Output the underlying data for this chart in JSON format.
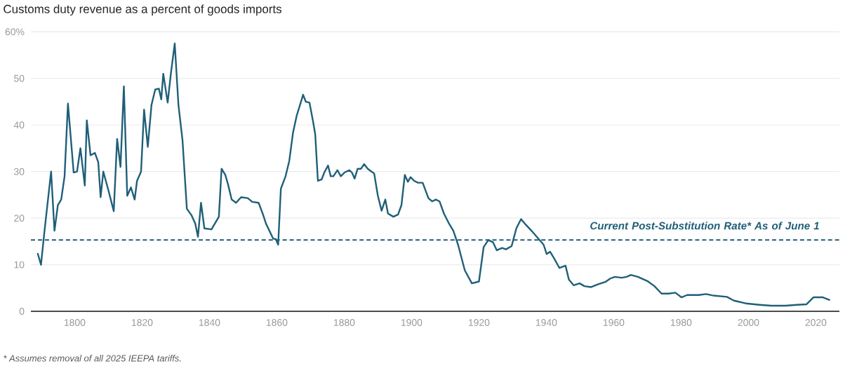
{
  "chart_data": {
    "type": "line",
    "title": "Customs duty revenue as a percent of goods imports",
    "x": [
      1789,
      1790,
      1791,
      1793,
      1794,
      1795,
      1796,
      1797,
      1798,
      1799.7,
      1800.7,
      1801.7,
      1803,
      1803.6,
      1804.7,
      1806,
      1807,
      1807.7,
      1808.5,
      1810,
      1811.6,
      1812.6,
      1813.6,
      1814.6,
      1815.6,
      1816.7,
      1817.8,
      1818.5,
      1819.7,
      1820.6,
      1821.7,
      1822.8,
      1823.9,
      1825,
      1825.7,
      1826.3,
      1827.6,
      1828.6,
      1829.7,
      1830.8,
      1832,
      1833.3,
      1834.7,
      1835.8,
      1836.6,
      1837.5,
      1838.5,
      1840.6,
      1842.8,
      1843.6,
      1844.7,
      1845.5,
      1846.6,
      1847.9,
      1849.4,
      1851.4,
      1852.7,
      1854.6,
      1855.9,
      1856.8,
      1858.9,
      1859.7,
      1860.4,
      1861.2,
      1862.6,
      1863.7,
      1864.8,
      1865.9,
      1867.1,
      1867.8,
      1868.6,
      1869.7,
      1870.8,
      1871.4,
      1872.2,
      1873.3,
      1874.1,
      1875.2,
      1876,
      1876.8,
      1878,
      1879,
      1880.1,
      1881.5,
      1882.3,
      1883.1,
      1884,
      1885,
      1885.9,
      1887,
      1888.1,
      1888.9,
      1890,
      1891.1,
      1892.2,
      1893,
      1894.6,
      1896,
      1897,
      1898,
      1898.9,
      1899.7,
      1900.8,
      1901.9,
      1903.3,
      1905,
      1906.1,
      1907.2,
      1908.3,
      1909.6,
      1911,
      1912.4,
      1913.8,
      1915.8,
      1917.9,
      1920,
      1921.4,
      1922.8,
      1924.2,
      1925.3,
      1926.9,
      1928,
      1929.7,
      1931.1,
      1932.5,
      1933.9,
      1935.6,
      1937.4,
      1939.2,
      1940.1,
      1941.1,
      1942.2,
      1943.9,
      1945.7,
      1946.7,
      1948.1,
      1949.9,
      1951.3,
      1953.3,
      1955.4,
      1957.5,
      1958.9,
      1960.3,
      1962.4,
      1963.8,
      1965.1,
      1967.2,
      1970,
      1972.1,
      1974.2,
      1976.3,
      1978.3,
      1980.1,
      1981.8,
      1985.3,
      1987.4,
      1989.4,
      1993.6,
      1995.7,
      1999.2,
      2003.3,
      2006.8,
      2011,
      2014.4,
      2017.2,
      2019.3,
      2022.1,
      2024.2
    ],
    "series": [
      {
        "color": "#1f5f78",
        "values": [
          12.5,
          10,
          17,
          30,
          17.3,
          22.8,
          24,
          29,
          44.6,
          29.8,
          30,
          35,
          27,
          41,
          33.5,
          34,
          32,
          24.5,
          30,
          26,
          21.5,
          37,
          31,
          48.3,
          24.8,
          26.6,
          24,
          28,
          30,
          43.3,
          35.3,
          44.3,
          47.6,
          47.8,
          45.5,
          51,
          44.8,
          51.3,
          57.5,
          44.3,
          36.8,
          22,
          20.6,
          18.8,
          16,
          23.3,
          17.8,
          17.6,
          20.3,
          30.6,
          29.3,
          27.3,
          24,
          23.3,
          24.5,
          24.3,
          23.5,
          23.3,
          20.8,
          18.8,
          15.6,
          15.5,
          14.3,
          26.3,
          29,
          32.3,
          38.3,
          42,
          44.8,
          46.5,
          45,
          44.8,
          40.6,
          38,
          28,
          28.3,
          29.8,
          31.3,
          29,
          29,
          30.3,
          29,
          29.8,
          30.3,
          29.8,
          28.5,
          30.6,
          30.6,
          31.6,
          30.6,
          30,
          29.6,
          24.8,
          21.6,
          24,
          21,
          20.3,
          20.8,
          22.8,
          29.3,
          27.8,
          28.8,
          28,
          27.6,
          27.6,
          24.3,
          23.6,
          24,
          23.6,
          21,
          19,
          17.3,
          14.3,
          8.8,
          6,
          6.4,
          13.8,
          15.3,
          14.8,
          13.1,
          13.6,
          13.3,
          14,
          17.8,
          19.8,
          18.6,
          17.3,
          15.8,
          14.3,
          12.3,
          12.8,
          11.5,
          9.3,
          9.8,
          6.8,
          5.6,
          6,
          5.4,
          5.2,
          5.8,
          6.3,
          7,
          7.4,
          7.2,
          7.4,
          7.8,
          7.4,
          6.5,
          5.4,
          3.8,
          3.8,
          4,
          3,
          3.5,
          3.5,
          3.7,
          3.4,
          3.1,
          2.3,
          1.7,
          1.4,
          1.2,
          1.2,
          1.4,
          1.5,
          3,
          3,
          2.4
        ]
      }
    ],
    "xlim": [
      1787,
      2027
    ],
    "ylim": [
      0,
      60
    ],
    "xticks": [
      1800,
      1820,
      1840,
      1860,
      1880,
      1900,
      1920,
      1940,
      1960,
      1980,
      2000,
      2020
    ],
    "yticks": [
      0,
      10,
      20,
      30,
      40,
      50,
      {
        "value": 60,
        "label": "60%"
      }
    ],
    "grid": "y",
    "marker": "none",
    "line_style": "solid",
    "ref_lines": [
      {
        "axis": "y",
        "value": 15.3,
        "label": "Current Post-Substitution Rate* As of June 1",
        "color": "#1f5f78",
        "line_style": "dashed"
      }
    ],
    "annotations": [
      "* Assumes removal of all 2025 IEEPA tariffs."
    ]
  }
}
